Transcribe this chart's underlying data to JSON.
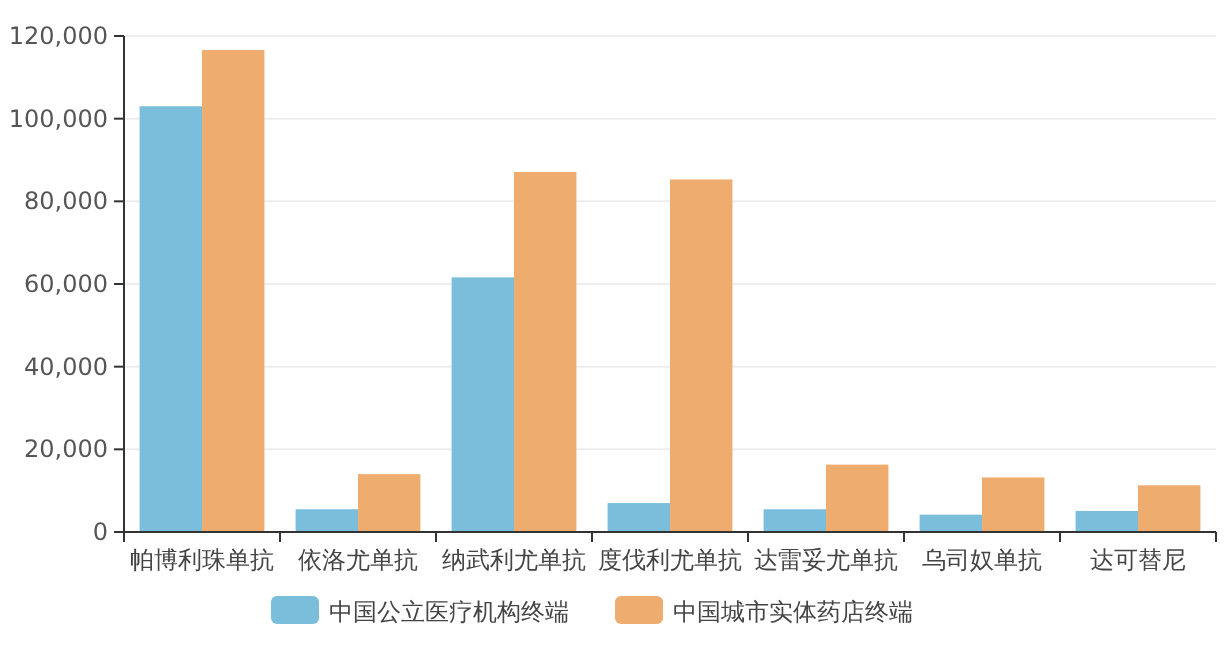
{
  "chart_data": {
    "type": "bar",
    "categories": [
      "帕博利珠单抗",
      "依洛尤单抗",
      "纳武利尤单抗",
      "度伐利尤单抗",
      "达雷妥尤单抗",
      "乌司奴单抗",
      "达可替尼"
    ],
    "series": [
      {
        "name": "中国公立医疗机构终端",
        "color": "#7bbedb",
        "values": [
          103000,
          5500,
          61600,
          7000,
          5500,
          4200,
          5100
        ]
      },
      {
        "name": "中国城市实体药店终端",
        "color": "#eeac6f",
        "values": [
          116600,
          14000,
          87100,
          85300,
          16300,
          13200,
          11300
        ]
      }
    ],
    "ylim": [
      0,
      120000
    ],
    "yticks": [
      {
        "value": 0,
        "label": "0"
      },
      {
        "value": 20000,
        "label": "20,000"
      },
      {
        "value": 40000,
        "label": "40,000"
      },
      {
        "value": 60000,
        "label": "60,000"
      },
      {
        "value": 80000,
        "label": "80,000"
      },
      {
        "value": 100000,
        "label": "100,000"
      },
      {
        "value": 120000,
        "label": "120,000"
      }
    ],
    "grid": "y",
    "legend": "bottom"
  }
}
